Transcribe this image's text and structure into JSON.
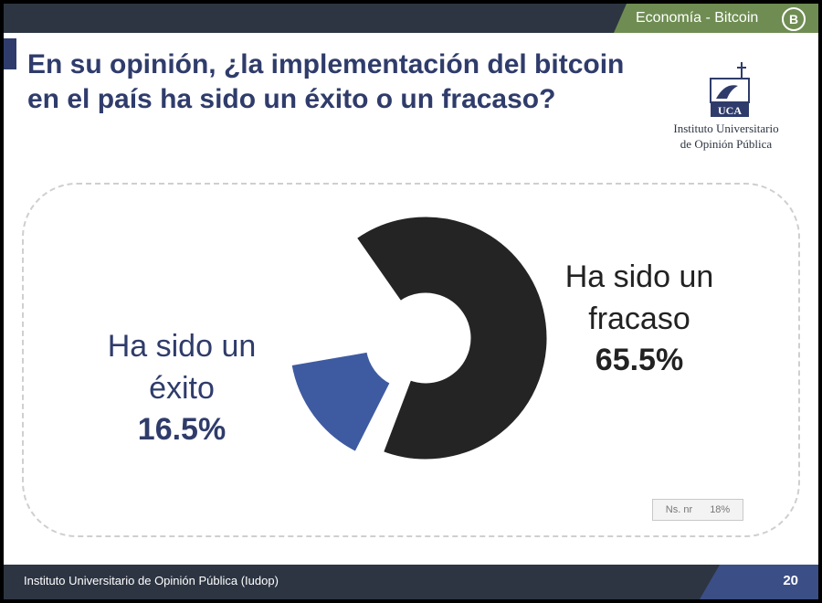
{
  "header": {
    "section_label": "Economía - Bitcoin",
    "section_icon": "bitcoin-icon",
    "icon_glyph": "B"
  },
  "title": {
    "question": "En su opinión, ¿la implementación del bitcoin en el país ha sido un éxito o un fracaso?"
  },
  "logo": {
    "icon": "uca-logo-icon",
    "logo_text": "UCA",
    "institute_line1": "Instituto Universitario",
    "institute_line2": "de Opinión Pública"
  },
  "chart_data": {
    "type": "pie",
    "variant": "donut",
    "slices": [
      {
        "label_line1": "Ha sido un",
        "label_line2": "éxito",
        "value": 16.5,
        "value_text": "16.5%",
        "color": "#3e5ba1"
      },
      {
        "label_line1": "Ha sido un",
        "label_line2": "fracaso",
        "value": 65.5,
        "value_text": "65.5%",
        "color": "#242424"
      }
    ],
    "other": {
      "label": "Ns. nr",
      "value": 18,
      "value_text": "18%"
    }
  },
  "footer": {
    "text": "Instituto Universitario de Opinión Pública (Iudop)",
    "page_number": "20"
  },
  "colors": {
    "header_dark": "#2d3542",
    "header_accent": "#6f8d52",
    "title_blue": "#2f3c6b",
    "footer_accent": "#3b4e86"
  }
}
